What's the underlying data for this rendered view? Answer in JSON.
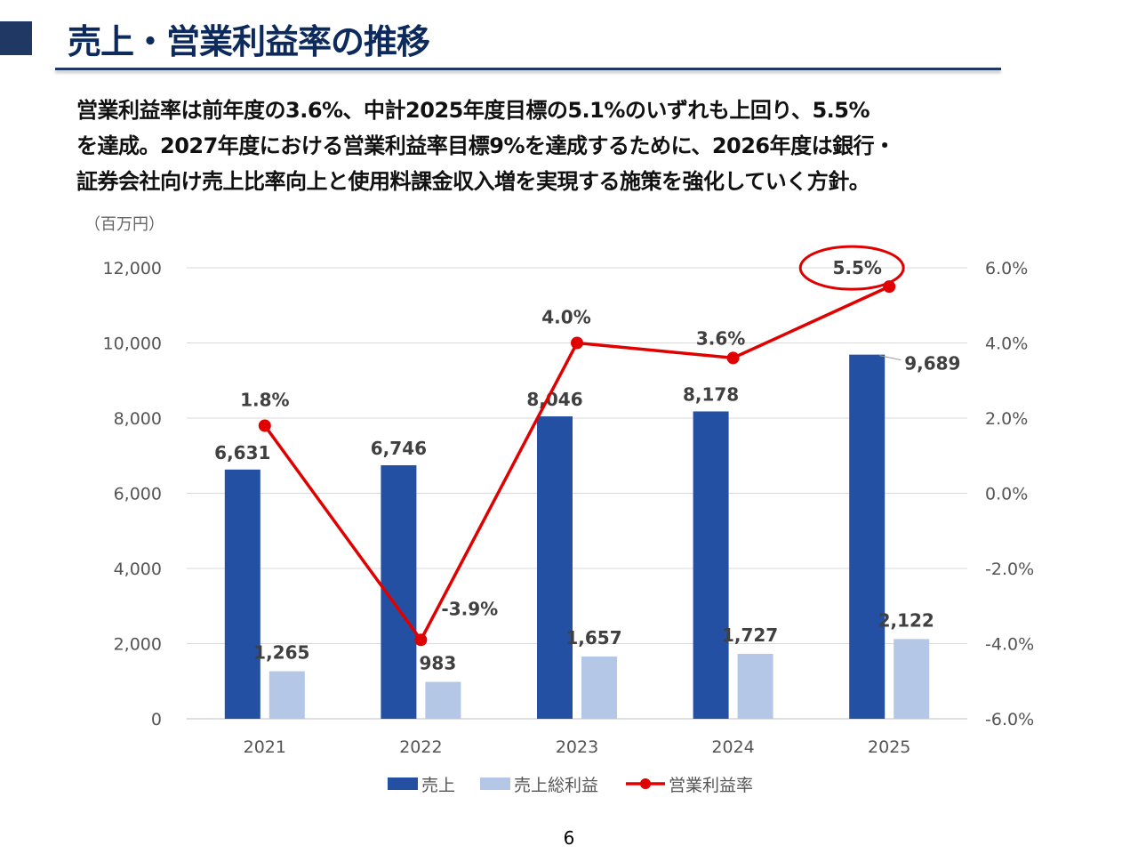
{
  "title": "売上・営業利益率の推移",
  "summary": [
    "営業利益率は前年度の3.6%、中計2025年度目標の5.1%のいずれも上回り、5.5%",
    "を達成。2027年度における営業利益率目標9%を達成するために、2026年度は銀行・",
    "証券会社向け売上比率向上と使用料課金収入増を実現する施策を強化していく方針。"
  ],
  "page_number": "6",
  "chart_data": {
    "type": "bar+line",
    "unit_label": "（百万円）",
    "categories": [
      "2021",
      "2022",
      "2023",
      "2024",
      "2025"
    ],
    "series": [
      {
        "name": "売上",
        "type": "bar",
        "axis": "left",
        "color": "#2450a4",
        "values": [
          6631,
          6746,
          8046,
          8178,
          9689
        ],
        "labels": [
          "6,631",
          "6,746",
          "8,046",
          "8,178",
          "9,689"
        ]
      },
      {
        "name": "売上総利益",
        "type": "bar",
        "axis": "left",
        "color": "#b4c7e7",
        "values": [
          1265,
          983,
          1657,
          1727,
          2122
        ],
        "labels": [
          "1,265",
          "983",
          "1,657",
          "1,727",
          "2,122"
        ]
      },
      {
        "name": "営業利益率",
        "type": "line",
        "axis": "right",
        "color": "#e00000",
        "values": [
          1.8,
          -3.9,
          4.0,
          3.6,
          5.5
        ],
        "labels": [
          "1.8%",
          "-3.9%",
          "4.0%",
          "3.6%",
          "5.5%"
        ]
      }
    ],
    "left_axis": {
      "range": [
        0,
        12000
      ],
      "ticks": [
        "0",
        "2,000",
        "4,000",
        "6,000",
        "8,000",
        "10,000",
        "12,000"
      ]
    },
    "right_axis": {
      "range": [
        -6,
        6
      ],
      "ticks": [
        "-6.0%",
        "-4.0%",
        "-2.0%",
        "0.0%",
        "2.0%",
        "4.0%",
        "6.0%"
      ]
    },
    "grid": true,
    "legend": "bottom",
    "highlight": {
      "category": "2025",
      "series": "営業利益率",
      "color": "#e00000"
    }
  }
}
